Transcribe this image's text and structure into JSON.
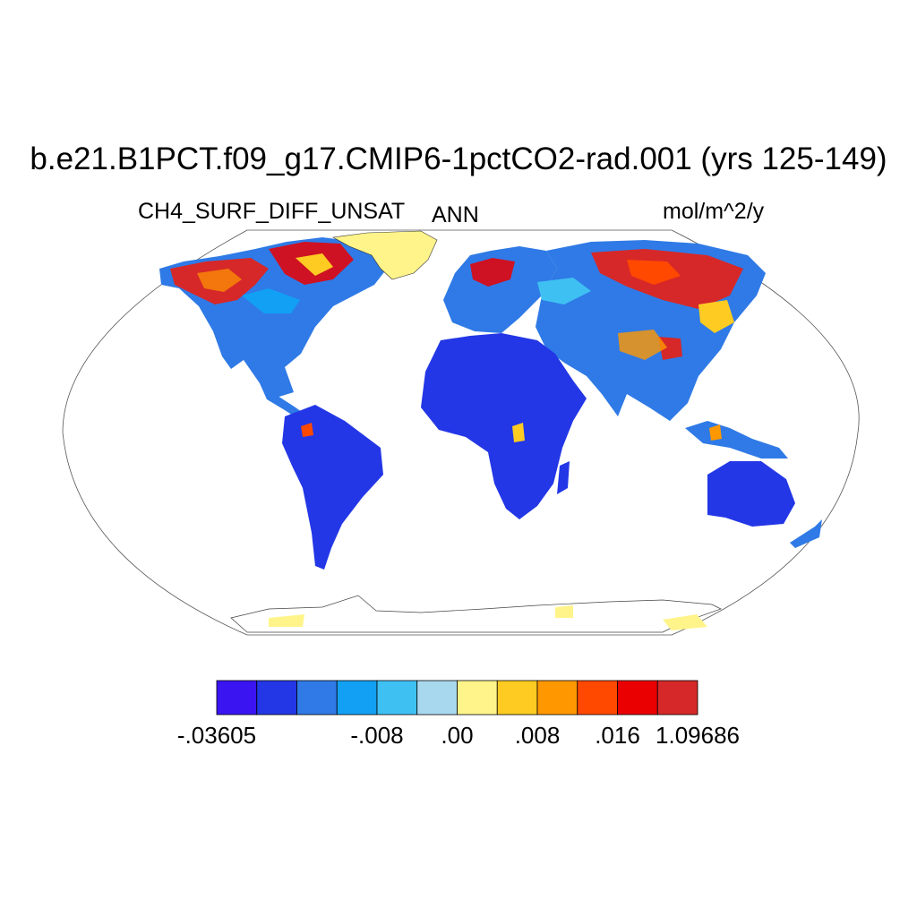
{
  "title": "b.e21.B1PCT.f09_g17.CMIP6-1pctCO2-rad.001 (yrs 125-149)",
  "subtitle_left": "CH4_SURF_DIFF_UNSAT",
  "subtitle_center": "ANN",
  "subtitle_right": "mol/m^2/y",
  "projection": "Robinson",
  "colorbar": {
    "colors": [
      "#3b14f2",
      "#2337e6",
      "#2f7ae6",
      "#12a0f5",
      "#3fc0f2",
      "#a8d8ee",
      "#fff48a",
      "#fecb22",
      "#ff9800",
      "#ff4800",
      "#ea0000",
      "#d62828"
    ],
    "tick_labels": [
      {
        "text": "-.03605",
        "boundary": 0
      },
      {
        "text": "-.008",
        "boundary": 4
      },
      {
        "text": ".00",
        "boundary": 6
      },
      {
        "text": ".008",
        "boundary": 8
      },
      {
        "text": ".016",
        "boundary": 10
      },
      {
        "text": "1.09686",
        "boundary": 12
      }
    ]
  }
}
